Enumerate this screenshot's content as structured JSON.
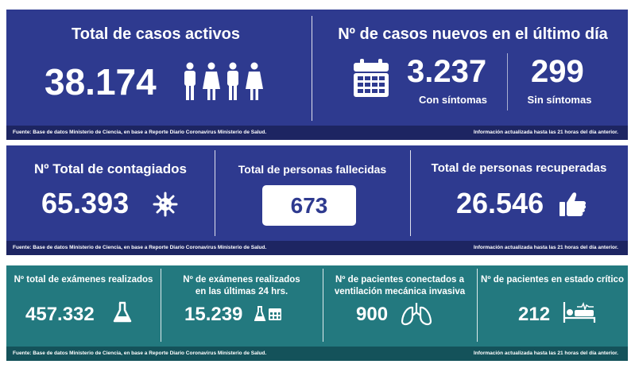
{
  "panel1": {
    "left": {
      "title": "Total de casos activos",
      "value": "38.174",
      "icon": "people-icon"
    },
    "right": {
      "title": "Nº de casos nuevos en el último día",
      "icon": "calendar-icon",
      "with_symptoms_value": "3.237",
      "with_symptoms_label": "Con síntomas",
      "without_symptoms_value": "299",
      "without_symptoms_label": "Sin síntomas"
    },
    "source": "Fuente: Base de datos Ministerio de Ciencia, en base a Reporte Diario Coronavirus Ministerio de Salud.",
    "updated": "Información actualizada hasta las 21 horas  del día anterior."
  },
  "panel2": {
    "contagiados": {
      "title": "Nº Total de contagiados",
      "value": "65.393",
      "icon": "virus-icon"
    },
    "fallecidos": {
      "title": "Total de personas fallecidas",
      "value": "673"
    },
    "recuperados": {
      "title": "Total de personas recuperadas",
      "value": "26.546",
      "icon": "thumbs-up-icon"
    },
    "source": "Fuente: Base de datos Ministerio de Ciencia, en base a Reporte Diario Coronavirus Ministerio de Salud.",
    "updated": "Información actualizada hasta las 21 horas  del día anterior."
  },
  "panel3": {
    "examenes": {
      "title": "Nº total de exámenes realizados",
      "value": "457.332",
      "icon": "flask-icon"
    },
    "examenes24": {
      "title_line1": "Nº de exámenes realizados",
      "title_line2": "en las últimas 24 hrs.",
      "value": "15.239",
      "icon": "flask-calendar-icon"
    },
    "ventilacion": {
      "title_line1": "Nº de pacientes conectados a",
      "title_line2": "ventilación mecánica invasiva",
      "value": "900",
      "icon": "lungs-icon"
    },
    "critico": {
      "title": "Nº de pacientes en estado crítico",
      "value": "212",
      "icon": "hospital-bed-icon"
    },
    "source": "Fuente: Base de datos Ministerio de Ciencia, en base a Reporte Diario Coronavirus Ministerio de Salud.",
    "updated": "Información actualizada hasta las 21 horas  del día anterior."
  },
  "colors": {
    "blue": "#2e3a8f",
    "blue_footer": "#1d2562",
    "teal": "#23797f",
    "teal_footer": "#14525a"
  }
}
